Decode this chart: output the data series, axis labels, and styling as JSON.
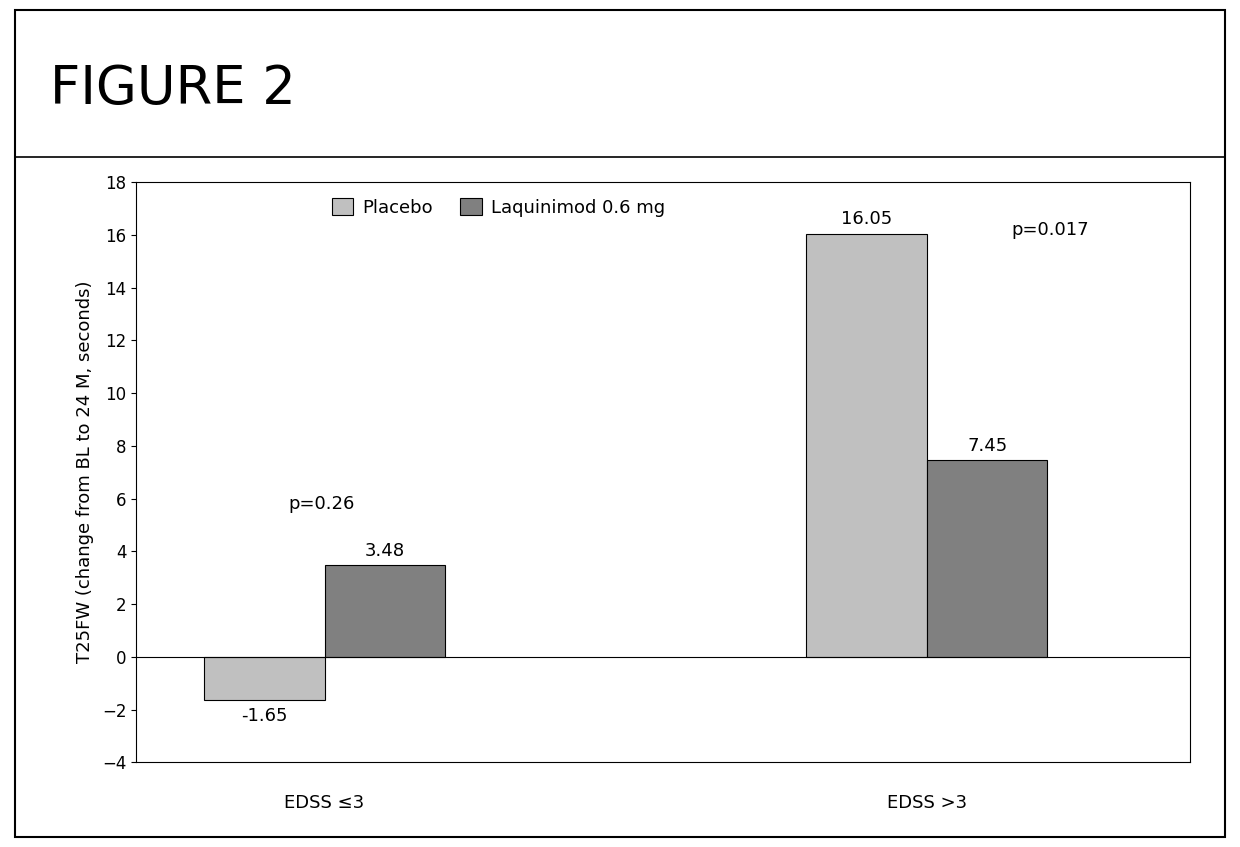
{
  "title": "FIGURE 2",
  "ylabel": "T25FW (change from BL to 24 M, seconds)",
  "groups": [
    "EDSS ≤3",
    "EDSS >3"
  ],
  "series": [
    "Placebo",
    "Laquinimod 0.6 mg"
  ],
  "values": [
    [
      -1.65,
      3.48
    ],
    [
      16.05,
      7.45
    ]
  ],
  "p_values": [
    "p=0.26",
    "p=0.017"
  ],
  "placebo_color": "#c0c0c0",
  "laquinimod_color": "#808080",
  "ylim": [
    -4,
    18
  ],
  "yticks": [
    -4,
    -2,
    0,
    2,
    4,
    6,
    8,
    10,
    12,
    14,
    16,
    18
  ],
  "bar_width": 0.32,
  "group_positions": [
    1.0,
    2.6
  ],
  "background_color": "#ffffff",
  "border_color": "#000000",
  "title_fontsize": 38,
  "axis_label_fontsize": 13,
  "tick_fontsize": 12,
  "legend_fontsize": 13,
  "annotation_fontsize": 13,
  "p_value_fontsize": 13
}
